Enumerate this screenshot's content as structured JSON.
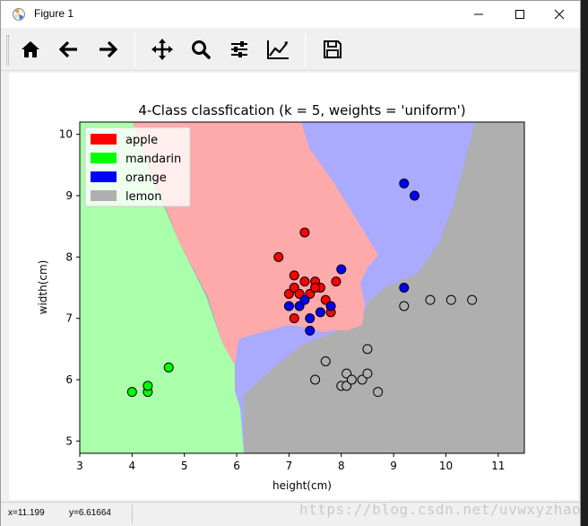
{
  "window": {
    "title": "Figure 1"
  },
  "toolbar": {
    "buttons": [
      {
        "name": "home-icon"
      },
      {
        "name": "back-arrow-icon"
      },
      {
        "name": "forward-arrow-icon"
      },
      {
        "name": "pan-move-icon"
      },
      {
        "name": "zoom-magnifier-icon"
      },
      {
        "name": "subplots-sliders-icon"
      },
      {
        "name": "edit-axis-chart-icon"
      },
      {
        "name": "save-floppy-icon"
      }
    ]
  },
  "status": {
    "x": "x=11.199",
    "y": "y=6.61664"
  },
  "watermark": "https://blog.csdn.net/uvwxyzhao",
  "chart_data": {
    "type": "scatter",
    "title": "4-Class classfication (k = 5, weights = 'uniform')",
    "xlabel": "height(cm)",
    "ylabel": "width(cm)",
    "xlim": [
      3,
      11.5
    ],
    "ylim": [
      4.8,
      10.2
    ],
    "xticks": [
      "3",
      "4",
      "5",
      "6",
      "7",
      "8",
      "9",
      "10",
      "11"
    ],
    "yticks": [
      "5",
      "6",
      "7",
      "8",
      "9",
      "10"
    ],
    "legend_position": "upper-left",
    "legend": [
      {
        "label": "apple",
        "color": "#ff0000"
      },
      {
        "label": "mandarin",
        "color": "#00ff00"
      },
      {
        "label": "orange",
        "color": "#0000ff"
      },
      {
        "label": "lemon",
        "color": "#afafaf"
      }
    ],
    "regions": [
      {
        "class": "mandarin",
        "color": "#aaffaa"
      },
      {
        "class": "apple",
        "color": "#ffaaaa"
      },
      {
        "class": "orange",
        "color": "#aaaaff"
      },
      {
        "class": "lemon",
        "color": "#afafaf"
      }
    ],
    "series": [
      {
        "name": "apple",
        "color": "#ff0000",
        "points": [
          [
            6.8,
            8.0
          ],
          [
            7.3,
            8.4
          ],
          [
            7.1,
            7.7
          ],
          [
            7.0,
            7.4
          ],
          [
            7.1,
            7.5
          ],
          [
            7.2,
            7.4
          ],
          [
            7.3,
            7.6
          ],
          [
            7.4,
            7.4
          ],
          [
            7.5,
            7.6
          ],
          [
            7.6,
            7.5
          ],
          [
            7.5,
            7.5
          ],
          [
            7.7,
            7.3
          ],
          [
            7.8,
            7.1
          ],
          [
            7.9,
            7.6
          ],
          [
            7.1,
            7.0
          ]
        ]
      },
      {
        "name": "mandarin",
        "color": "#00ff00",
        "points": [
          [
            4.0,
            5.8
          ],
          [
            4.3,
            5.8
          ],
          [
            4.3,
            5.9
          ],
          [
            4.7,
            6.2
          ]
        ]
      },
      {
        "name": "orange",
        "color": "#0000ff",
        "points": [
          [
            9.2,
            9.2
          ],
          [
            9.4,
            9.0
          ],
          [
            8.0,
            7.8
          ],
          [
            9.2,
            7.5
          ],
          [
            7.0,
            7.2
          ],
          [
            7.2,
            7.2
          ],
          [
            7.3,
            7.3
          ],
          [
            7.6,
            7.1
          ],
          [
            7.8,
            7.2
          ],
          [
            7.4,
            7.0
          ],
          [
            7.4,
            6.8
          ]
        ]
      },
      {
        "name": "lemon",
        "color": "#afafaf",
        "points": [
          [
            7.7,
            6.3
          ],
          [
            7.5,
            6.0
          ],
          [
            8.1,
            6.1
          ],
          [
            8.0,
            5.9
          ],
          [
            8.1,
            5.9
          ],
          [
            8.2,
            6.0
          ],
          [
            8.4,
            6.0
          ],
          [
            8.5,
            6.1
          ],
          [
            8.5,
            6.5
          ],
          [
            8.7,
            5.8
          ],
          [
            9.2,
            7.2
          ],
          [
            9.7,
            7.3
          ],
          [
            10.1,
            7.3
          ],
          [
            10.5,
            7.3
          ]
        ]
      }
    ]
  }
}
